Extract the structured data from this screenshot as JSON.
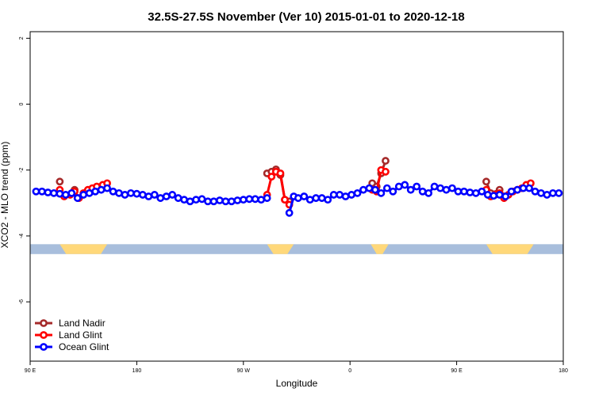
{
  "chart_data": {
    "type": "line",
    "title": "32.5S-27.5S November (Ver 10)   2015-01-01 to 2020-12-18",
    "xlabel": "Longitude",
    "ylabel": "XCO2 - MLO trend (ppm)",
    "xlim": [
      0,
      360
    ],
    "ylim": [
      -7.8,
      2.2
    ],
    "x_ticks": [
      {
        "value": 0,
        "label": "90 E"
      },
      {
        "value": 72,
        "label": "180"
      },
      {
        "value": 144,
        "label": "90 W"
      },
      {
        "value": 216,
        "label": "0"
      },
      {
        "value": 288,
        "label": "90 E"
      },
      {
        "value": 360,
        "label": "180"
      }
    ],
    "y_ticks": [
      {
        "value": 2,
        "label": "2"
      },
      {
        "value": 0,
        "label": "0"
      },
      {
        "value": -2,
        "label": "-2"
      },
      {
        "value": -4,
        "label": "-4"
      },
      {
        "value": -6,
        "label": "-6"
      }
    ],
    "land_band": {
      "y_range": [
        -4.55,
        -4.25
      ],
      "ocean_color": "#a8bedc",
      "land_color": "#ffd87a",
      "land_segments": [
        [
          20,
          52
        ],
        [
          160,
          178
        ],
        [
          230,
          242
        ],
        [
          308,
          340
        ]
      ]
    },
    "series": [
      {
        "name": "Land Nadir",
        "color": "#a52a2a",
        "segments": [
          {
            "x": [
              20
            ],
            "y": [
              -2.35
            ]
          },
          {
            "x": [
              30
            ],
            "y": [
              -2.6
            ]
          },
          {
            "x": [
              160,
              163,
              166,
              169,
              172,
              175
            ],
            "y": [
              -2.1,
              -2.05,
              -1.98,
              -2.15,
              -2.9,
              -2.95
            ]
          },
          {
            "x": [
              231,
              234,
              237,
              240
            ],
            "y": [
              -2.4,
              -2.5,
              -2.1,
              -1.72
            ]
          },
          {
            "x": [
              308,
              311,
              317,
              320
            ],
            "y": [
              -2.35,
              -2.7,
              -2.6,
              -2.8
            ]
          }
        ]
      },
      {
        "name": "Land Glint",
        "color": "#ff0000",
        "segments": [
          {
            "x": [
              20,
              23,
              27,
              30,
              33,
              36,
              39,
              42,
              45,
              49,
              52
            ],
            "y": [
              -2.6,
              -2.8,
              -2.75,
              -2.65,
              -2.85,
              -2.7,
              -2.6,
              -2.55,
              -2.5,
              -2.45,
              -2.4
            ]
          },
          {
            "x": [
              160,
              163,
              166,
              169,
              172,
              175
            ],
            "y": [
              -2.75,
              -2.2,
              -2.05,
              -2.1,
              -2.9,
              -3.05
            ]
          },
          {
            "x": [
              231,
              234,
              237,
              240
            ],
            "y": [
              -2.6,
              -2.65,
              -2.0,
              -2.05
            ]
          },
          {
            "x": [
              308,
              311,
              314,
              317,
              320,
              323,
              326,
              329,
              332,
              335,
              338
            ],
            "y": [
              -2.6,
              -2.8,
              -2.75,
              -2.7,
              -2.85,
              -2.75,
              -2.65,
              -2.6,
              -2.55,
              -2.45,
              -2.4
            ]
          }
        ]
      },
      {
        "name": "Ocean Glint",
        "color": "#0000ff",
        "segments": [
          {
            "x": [
              4,
              8,
              12,
              16,
              20,
              24,
              28,
              32,
              36,
              40,
              44,
              48,
              52,
              56,
              60,
              64,
              68,
              72,
              76,
              80,
              84,
              88,
              92,
              96,
              100,
              104,
              108,
              112,
              116,
              120,
              124,
              128,
              132,
              136,
              140,
              144,
              148,
              152,
              156,
              160
            ],
            "y": [
              -2.65,
              -2.65,
              -2.68,
              -2.7,
              -2.72,
              -2.75,
              -2.7,
              -2.85,
              -2.75,
              -2.7,
              -2.65,
              -2.6,
              -2.55,
              -2.65,
              -2.7,
              -2.75,
              -2.7,
              -2.72,
              -2.75,
              -2.8,
              -2.75,
              -2.85,
              -2.8,
              -2.75,
              -2.85,
              -2.9,
              -2.95,
              -2.9,
              -2.88,
              -2.95,
              -2.95,
              -2.92,
              -2.95,
              -2.95,
              -2.92,
              -2.9,
              -2.88,
              -2.88,
              -2.9,
              -2.85
            ]
          },
          {
            "x": [
              175,
              178,
              181,
              185,
              189,
              193,
              197,
              201,
              205,
              209,
              213,
              217,
              221,
              225,
              229,
              233,
              237,
              241,
              245,
              249,
              253,
              257,
              261,
              265,
              269,
              273,
              277,
              281,
              285,
              289,
              293,
              297,
              301,
              305,
              309,
              313,
              317,
              321,
              325,
              329,
              333,
              337,
              341,
              345,
              349,
              353,
              357
            ],
            "y": [
              -3.3,
              -2.8,
              -2.85,
              -2.8,
              -2.9,
              -2.85,
              -2.85,
              -2.9,
              -2.75,
              -2.75,
              -2.8,
              -2.75,
              -2.7,
              -2.6,
              -2.55,
              -2.6,
              -2.7,
              -2.55,
              -2.65,
              -2.5,
              -2.45,
              -2.6,
              -2.5,
              -2.65,
              -2.7,
              -2.5,
              -2.55,
              -2.6,
              -2.55,
              -2.65,
              -2.65,
              -2.68,
              -2.7,
              -2.65,
              -2.75,
              -2.78,
              -2.75,
              -2.8,
              -2.65,
              -2.6,
              -2.55,
              -2.55,
              -2.65,
              -2.7,
              -2.75,
              -2.7,
              -2.7
            ]
          }
        ]
      }
    ],
    "legend_position": "bottom-left"
  }
}
